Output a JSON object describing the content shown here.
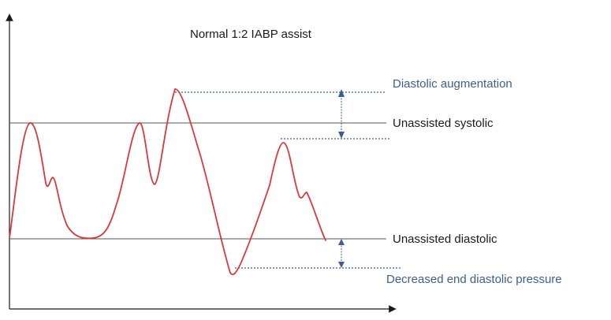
{
  "title": "Normal 1:2 IABP assist",
  "labels": {
    "diastolic_augmentation": "Diastolic augmentation",
    "unassisted_systolic": "Unassisted systolic",
    "unassisted_diastolic": "Unassisted diastolic",
    "decreased_end_diastolic": "Decreased end diastolic pressure"
  },
  "colors": {
    "waveform": "#d9393b",
    "reference_line": "#555555",
    "dotted_line": "#3c5f8f",
    "label_blue": "#3c5f8f",
    "label_dark": "#1a1a1a",
    "axis": "#1a1a1a"
  },
  "icons": {
    "y_axis_end": "arrow-up-icon",
    "x_axis_end": "arrow-right-icon",
    "measure_ends": "double-arrow-icon"
  }
}
